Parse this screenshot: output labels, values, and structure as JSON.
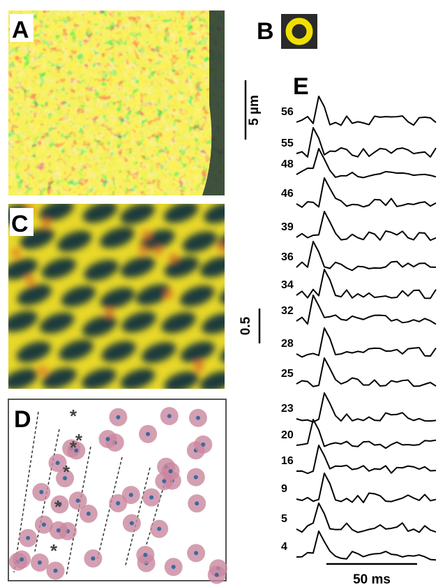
{
  "panels": {
    "a": "A",
    "b": "B",
    "c": "C",
    "d": "D",
    "e": "E"
  },
  "traces": [
    "56",
    "55",
    "48",
    "46",
    "39",
    "36",
    "34",
    "32",
    "28",
    "25",
    "23",
    "20",
    "16",
    "9",
    "5",
    "4"
  ],
  "scale_bars": {
    "length": "5 µm",
    "amplitude": "0.5",
    "time": "50 ms"
  }
}
